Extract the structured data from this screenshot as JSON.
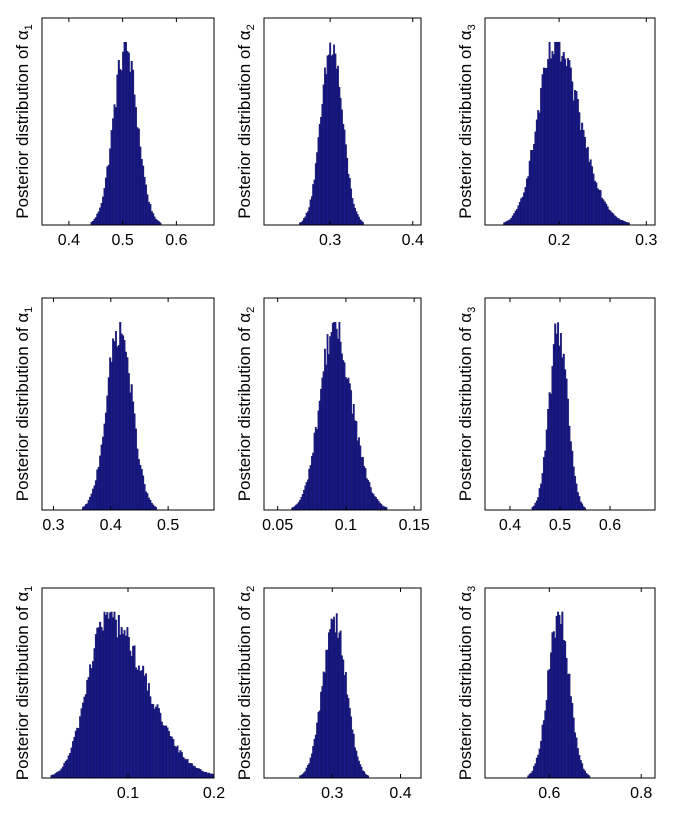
{
  "chart_data": [
    {
      "type": "bar",
      "panel": "row-1-col-1",
      "ylabel": "Posterior distribution of α",
      "ylabel_subscript": "1",
      "xlim": [
        0.35,
        0.67
      ],
      "xticks": [
        0.4,
        0.5,
        0.6
      ],
      "xtick_labels": [
        "0.4",
        "0.5",
        "0.6"
      ],
      "distribution": {
        "mean": 0.505,
        "sd": 0.022,
        "skew": 0.0
      },
      "color": "#1a1a8c"
    },
    {
      "type": "bar",
      "panel": "row-1-col-2",
      "ylabel": "Posterior distribution of α",
      "ylabel_subscript": "2",
      "xlim": [
        0.22,
        0.41
      ],
      "xticks": [
        0.3,
        0.4
      ],
      "xtick_labels": [
        "0.3",
        "0.4"
      ],
      "distribution": {
        "mean": 0.302,
        "sd": 0.013,
        "skew": 0.0
      },
      "color": "#1a1a8c"
    },
    {
      "type": "bar",
      "panel": "row-1-col-3",
      "ylabel": "Posterior distribution of α",
      "ylabel_subscript": "3",
      "xlim": [
        0.115,
        0.31
      ],
      "xticks": [
        0.2,
        0.3
      ],
      "xtick_labels": [
        "0.2",
        "0.3"
      ],
      "distribution": {
        "mean": 0.195,
        "sd": 0.022,
        "skew": 0.3
      },
      "color": "#1a1a8c"
    },
    {
      "type": "bar",
      "panel": "row-2-col-1",
      "ylabel": "Posterior distribution of α",
      "ylabel_subscript": "1",
      "xlim": [
        0.28,
        0.58
      ],
      "xticks": [
        0.3,
        0.4,
        0.5
      ],
      "xtick_labels": [
        "0.3",
        "0.4",
        "0.5"
      ],
      "distribution": {
        "mean": 0.415,
        "sd": 0.022,
        "skew": 0.0
      },
      "color": "#1a1a8c"
    },
    {
      "type": "bar",
      "panel": "row-2-col-2",
      "ylabel": "Posterior distribution of α",
      "ylabel_subscript": "2",
      "xlim": [
        0.04,
        0.155
      ],
      "xticks": [
        0.05,
        0.1,
        0.15
      ],
      "xtick_labels": [
        "0.05",
        "0.1",
        "0.15"
      ],
      "distribution": {
        "mean": 0.091,
        "sd": 0.011,
        "skew": 0.2
      },
      "color": "#1a1a8c"
    },
    {
      "type": "bar",
      "panel": "row-2-col-3",
      "ylabel": "Posterior distribution of α",
      "ylabel_subscript": "3",
      "xlim": [
        0.35,
        0.69
      ],
      "xticks": [
        0.4,
        0.5,
        0.6
      ],
      "xtick_labels": [
        "0.4",
        "0.5",
        "0.6"
      ],
      "distribution": {
        "mean": 0.497,
        "sd": 0.018,
        "skew": 0.0
      },
      "color": "#1a1a8c"
    },
    {
      "type": "bar",
      "panel": "row-3-col-1",
      "ylabel": "Posterior distribution of α",
      "ylabel_subscript": "1",
      "xlim": [
        0.0,
        0.2
      ],
      "xticks": [
        0.1,
        0.2
      ],
      "xtick_labels": [
        "0.1",
        "0.2"
      ],
      "distribution": {
        "mean": 0.075,
        "sd": 0.028,
        "skew": 0.6
      },
      "color": "#1a1a8c"
    },
    {
      "type": "bar",
      "panel": "row-3-col-2",
      "ylabel": "Posterior distribution of α",
      "ylabel_subscript": "2",
      "xlim": [
        0.2,
        0.43
      ],
      "xticks": [
        0.3,
        0.4
      ],
      "xtick_labels": [
        "0.3",
        "0.4"
      ],
      "distribution": {
        "mean": 0.303,
        "sd": 0.017,
        "skew": 0.0
      },
      "color": "#1a1a8c"
    },
    {
      "type": "bar",
      "panel": "row-3-col-3",
      "ylabel": "Posterior distribution of α",
      "ylabel_subscript": "3",
      "xlim": [
        0.46,
        0.83
      ],
      "xticks": [
        0.6,
        0.8
      ],
      "xtick_labels": [
        "0.6",
        "0.8"
      ],
      "distribution": {
        "mean": 0.62,
        "sd": 0.023,
        "skew": 0.0
      },
      "color": "#1a1a8c"
    }
  ]
}
